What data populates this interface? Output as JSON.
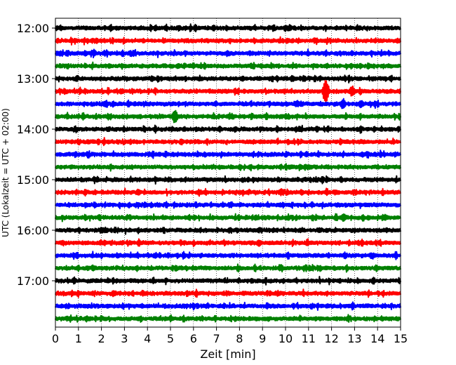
{
  "chart_data": {
    "type": "line",
    "subtype": "helicorder",
    "title": "",
    "xlabel": "Zeit  [min]",
    "ylabel": "UTC (Lokalzeit = UTC + 02:00)",
    "xlim": [
      0,
      15
    ],
    "x_ticks": [
      0,
      1,
      2,
      3,
      4,
      5,
      6,
      7,
      8,
      9,
      10,
      11,
      12,
      13,
      14,
      15
    ],
    "y_tick_labels": [
      "12:00",
      "13:00",
      "14:00",
      "15:00",
      "16:00",
      "17:00"
    ],
    "y_tick_traces": [
      0,
      4,
      8,
      12,
      16,
      20
    ],
    "minutes_per_trace": 15,
    "grid": {
      "x": true,
      "style": "dotted",
      "y": false
    },
    "legend": "none",
    "colors_cycle": [
      "#000000",
      "#ff0000",
      "#0000ff",
      "#008000"
    ],
    "traces": [
      {
        "start": "12:00",
        "color": "#000000",
        "events": []
      },
      {
        "start": "12:15",
        "color": "#ff0000",
        "events": []
      },
      {
        "start": "12:30",
        "color": "#0000ff",
        "events": []
      },
      {
        "start": "12:45",
        "color": "#008000",
        "events": []
      },
      {
        "start": "13:00",
        "color": "#000000",
        "events": [
          {
            "t": 10.8,
            "amp": 0.25
          }
        ]
      },
      {
        "start": "13:15",
        "color": "#ff0000",
        "events": [
          {
            "t": 11.75,
            "amp": 1.3
          },
          {
            "t": 12.9,
            "amp": 0.45
          }
        ]
      },
      {
        "start": "13:30",
        "color": "#0000ff",
        "events": [
          {
            "t": 10.5,
            "amp": 0.3
          },
          {
            "t": 12.5,
            "amp": 0.45
          },
          {
            "t": 13.25,
            "amp": 0.3
          }
        ]
      },
      {
        "start": "13:45",
        "color": "#008000",
        "events": [
          {
            "t": 5.2,
            "amp": 0.65
          }
        ]
      },
      {
        "start": "14:00",
        "color": "#000000",
        "events": []
      },
      {
        "start": "14:15",
        "color": "#ff0000",
        "events": []
      },
      {
        "start": "14:30",
        "color": "#0000ff",
        "events": []
      },
      {
        "start": "14:45",
        "color": "#008000",
        "events": [
          {
            "t": 11.0,
            "amp": 0.25
          }
        ]
      },
      {
        "start": "15:00",
        "color": "#000000",
        "events": []
      },
      {
        "start": "15:15",
        "color": "#ff0000",
        "events": [
          {
            "t": 3.6,
            "amp": 0.25
          }
        ]
      },
      {
        "start": "15:30",
        "color": "#0000ff",
        "events": [
          {
            "t": 3.9,
            "amp": 0.25
          }
        ]
      },
      {
        "start": "15:45",
        "color": "#008000",
        "events": [
          {
            "t": 12.5,
            "amp": 0.3
          },
          {
            "t": 14.3,
            "amp": 0.3
          }
        ]
      },
      {
        "start": "16:00",
        "color": "#000000",
        "events": []
      },
      {
        "start": "16:15",
        "color": "#ff0000",
        "events": []
      },
      {
        "start": "16:30",
        "color": "#0000ff",
        "events": []
      },
      {
        "start": "16:45",
        "color": "#008000",
        "events": [
          {
            "t": 11.5,
            "amp": 0.25
          }
        ]
      },
      {
        "start": "17:00",
        "color": "#000000",
        "events": []
      },
      {
        "start": "17:15",
        "color": "#ff0000",
        "events": []
      },
      {
        "start": "17:30",
        "color": "#0000ff",
        "events": []
      },
      {
        "start": "17:45",
        "color": "#008000",
        "events": []
      }
    ]
  }
}
